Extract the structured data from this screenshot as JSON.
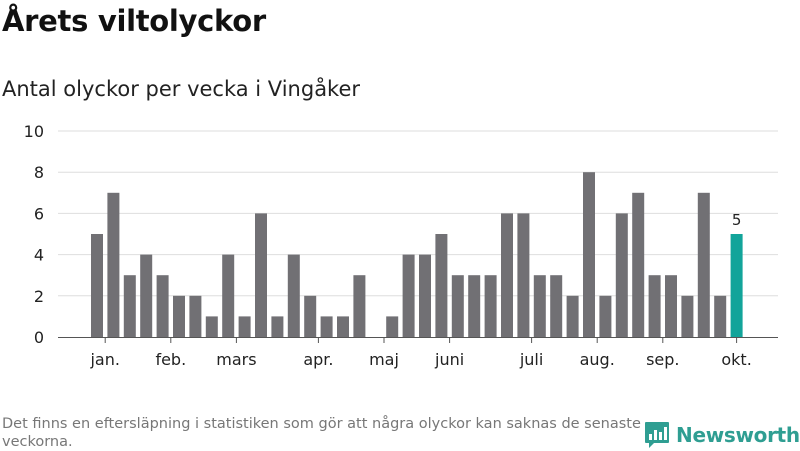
{
  "header": {
    "title": "Årets viltolyckor",
    "subtitle": "Antal olyckor per vecka i Vingåker"
  },
  "footnote": "Det finns en eftersläpning i statistiken som gör att några olyckor kan saknas de senaste veckorna.",
  "brand": {
    "name": "Newsworthy",
    "icon": "bar-chart-logo-icon",
    "color": "#2f9e92"
  },
  "colors": {
    "bar": "#717074",
    "highlight": "#12a49a",
    "grid": "#dedede",
    "axis": "#555555"
  },
  "chart_data": {
    "type": "bar",
    "title": "Antal olyckor per vecka i Vingåker",
    "xlabel": "",
    "ylabel": "",
    "ylim": [
      0,
      10
    ],
    "yticks": [
      0,
      2,
      4,
      6,
      8,
      10
    ],
    "grid": true,
    "values": [
      5,
      7,
      3,
      4,
      3,
      2,
      2,
      1,
      4,
      1,
      6,
      1,
      4,
      2,
      1,
      1,
      3,
      0,
      1,
      4,
      4,
      5,
      3,
      3,
      3,
      6,
      6,
      3,
      3,
      2,
      8,
      2,
      6,
      7,
      3,
      3,
      2,
      7,
      2,
      5
    ],
    "highlight_index": 39,
    "highlight_label": "5",
    "month_labels": [
      {
        "label": "jan.",
        "bar": 0.5
      },
      {
        "label": "feb.",
        "bar": 4.5
      },
      {
        "label": "mars",
        "bar": 8.5
      },
      {
        "label": "apr.",
        "bar": 13.5
      },
      {
        "label": "maj",
        "bar": 17.5
      },
      {
        "label": "juni",
        "bar": 21.5
      },
      {
        "label": "juli",
        "bar": 26.5
      },
      {
        "label": "aug.",
        "bar": 30.5
      },
      {
        "label": "sep.",
        "bar": 34.5
      },
      {
        "label": "okt.",
        "bar": 39
      }
    ]
  }
}
